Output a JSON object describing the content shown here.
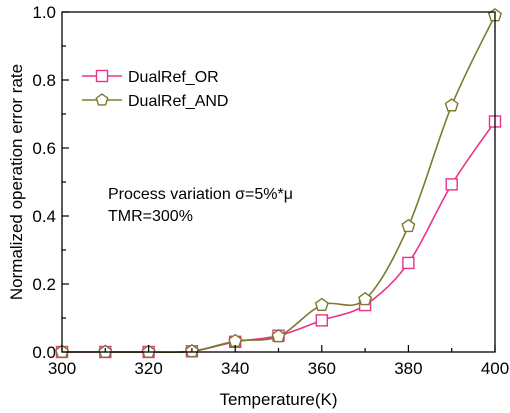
{
  "chart_data": {
    "type": "line",
    "xlabel": "Temperature(K)",
    "ylabel": "Normalized operation error rate",
    "xlim": [
      300,
      400
    ],
    "ylim": [
      0,
      1.0
    ],
    "x_ticks": [
      "300",
      "320",
      "340",
      "360",
      "380",
      "400"
    ],
    "y_ticks": [
      "0.0",
      "0.2",
      "0.4",
      "0.6",
      "0.8",
      "1.0"
    ],
    "legend_position": "top-left",
    "grid": false,
    "annotations": [
      "Process variation σ=5%*μ",
      "TMR=300%"
    ],
    "x": [
      300,
      310,
      320,
      330,
      340,
      350,
      360,
      370,
      380,
      390,
      400
    ],
    "series": [
      {
        "name": "DualRef_OR",
        "marker": "square",
        "color": "#e8338a",
        "values": [
          0.0,
          0.0,
          0.0,
          0.002,
          0.03,
          0.048,
          0.093,
          0.138,
          0.262,
          0.493,
          0.678
        ]
      },
      {
        "name": "DualRef_AND",
        "marker": "pentagon",
        "color": "#7a7a2e",
        "values": [
          0.0,
          0.0,
          0.0,
          0.002,
          0.032,
          0.046,
          0.138,
          0.155,
          0.37,
          0.725,
          0.99
        ]
      }
    ]
  }
}
